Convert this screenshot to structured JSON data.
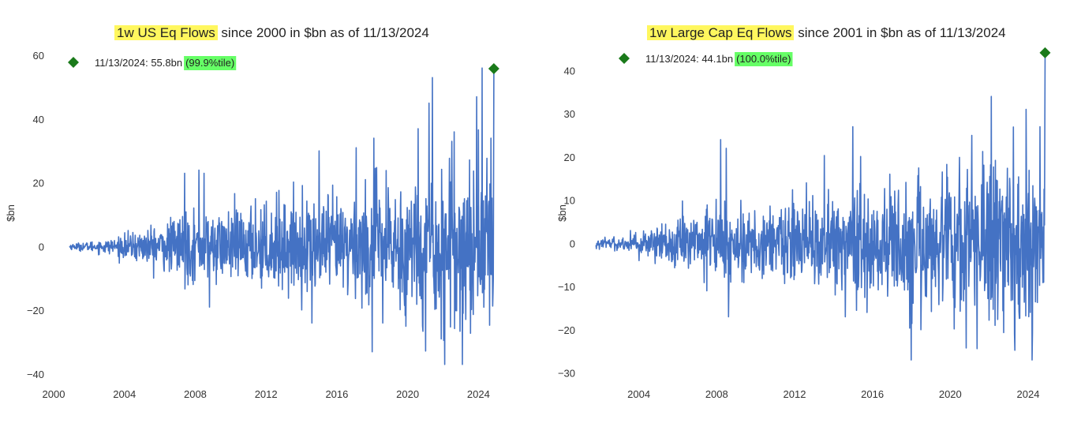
{
  "chart_data": [
    {
      "type": "line",
      "title_highlight": "1w US Eq Flows",
      "title_rest": " since 2000 in $bn as of 11/13/2024",
      "ylabel": "$bn",
      "xlabel": "",
      "xlim": [
        2000,
        2025.5
      ],
      "ylim": [
        -41,
        62
      ],
      "x_ticks": [
        "2000",
        "2004",
        "2008",
        "2012",
        "2016",
        "2020",
        "2024"
      ],
      "y_ticks": [
        "-40",
        "-20",
        "0",
        "20",
        "40",
        "60"
      ],
      "line_color": "#4472c4",
      "marker_color": "#1a7a1a",
      "last_point": {
        "x": 2024.87,
        "y": 55.8
      },
      "legend": {
        "date": "11/13/2024: 55.8bn",
        "pct": "(99.9%tile)",
        "pct_color": "#66ff66"
      },
      "series_start": 2000.9,
      "series_end": 2024.87,
      "peaks": [
        {
          "x": 2007.4,
          "y": 23
        },
        {
          "x": 2008.2,
          "y": 24
        },
        {
          "x": 2008.5,
          "y": 23
        },
        {
          "x": 2007.6,
          "y": -12
        },
        {
          "x": 2008.8,
          "y": -19
        },
        {
          "x": 2011.4,
          "y": 15
        },
        {
          "x": 2012.6,
          "y": 17
        },
        {
          "x": 2014.6,
          "y": -24
        },
        {
          "x": 2015.0,
          "y": 30
        },
        {
          "x": 2017.1,
          "y": 31
        },
        {
          "x": 2018.1,
          "y": 34
        },
        {
          "x": 2018.0,
          "y": -33
        },
        {
          "x": 2018.6,
          "y": -24
        },
        {
          "x": 2019.9,
          "y": -25
        },
        {
          "x": 2020.6,
          "y": 37
        },
        {
          "x": 2021.2,
          "y": 45
        },
        {
          "x": 2021.4,
          "y": 53
        },
        {
          "x": 2021.9,
          "y": -29
        },
        {
          "x": 2022.1,
          "y": -37
        },
        {
          "x": 2022.5,
          "y": 33
        },
        {
          "x": 2023.1,
          "y": -37
        },
        {
          "x": 2023.9,
          "y": 47
        },
        {
          "x": 2024.2,
          "y": 56
        },
        {
          "x": 2024.7,
          "y": 34
        },
        {
          "x": 2024.85,
          "y": -10
        }
      ]
    },
    {
      "type": "line",
      "title_highlight": "1w Large Cap Eq Flows",
      "title_rest": " since 2001 in $bn as of 11/13/2024",
      "ylabel": "$bn",
      "xlabel": "",
      "xlim": [
        2001.3,
        2025.5
      ],
      "ylim": [
        -31,
        45
      ],
      "x_ticks": [
        "2004",
        "2008",
        "2012",
        "2016",
        "2020",
        "2024"
      ],
      "y_ticks": [
        "-30",
        "-20",
        "-10",
        "0",
        "10",
        "20",
        "30",
        "40"
      ],
      "line_color": "#4472c4",
      "marker_color": "#1a7a1a",
      "last_point": {
        "x": 2024.87,
        "y": 44.1
      },
      "legend": {
        "date": "11/13/2024: 44.1bn",
        "pct": "(100.0%tile)",
        "pct_color": "#66ff66"
      },
      "series_start": 2001.8,
      "series_end": 2024.87,
      "peaks": [
        {
          "x": 2008.2,
          "y": 24
        },
        {
          "x": 2008.5,
          "y": 22
        },
        {
          "x": 2007.5,
          "y": -11
        },
        {
          "x": 2008.6,
          "y": -17
        },
        {
          "x": 2012.6,
          "y": 14
        },
        {
          "x": 2014.6,
          "y": -17
        },
        {
          "x": 2015.0,
          "y": 27
        },
        {
          "x": 2016.9,
          "y": 16
        },
        {
          "x": 2018.0,
          "y": -27
        },
        {
          "x": 2018.5,
          "y": -20
        },
        {
          "x": 2021.1,
          "y": 25
        },
        {
          "x": 2022.1,
          "y": 34
        },
        {
          "x": 2022.3,
          "y": -19
        },
        {
          "x": 2023.3,
          "y": -21
        },
        {
          "x": 2023.9,
          "y": 31
        },
        {
          "x": 2024.1,
          "y": -16
        },
        {
          "x": 2024.6,
          "y": 27
        },
        {
          "x": 2024.8,
          "y": -9
        }
      ]
    }
  ]
}
